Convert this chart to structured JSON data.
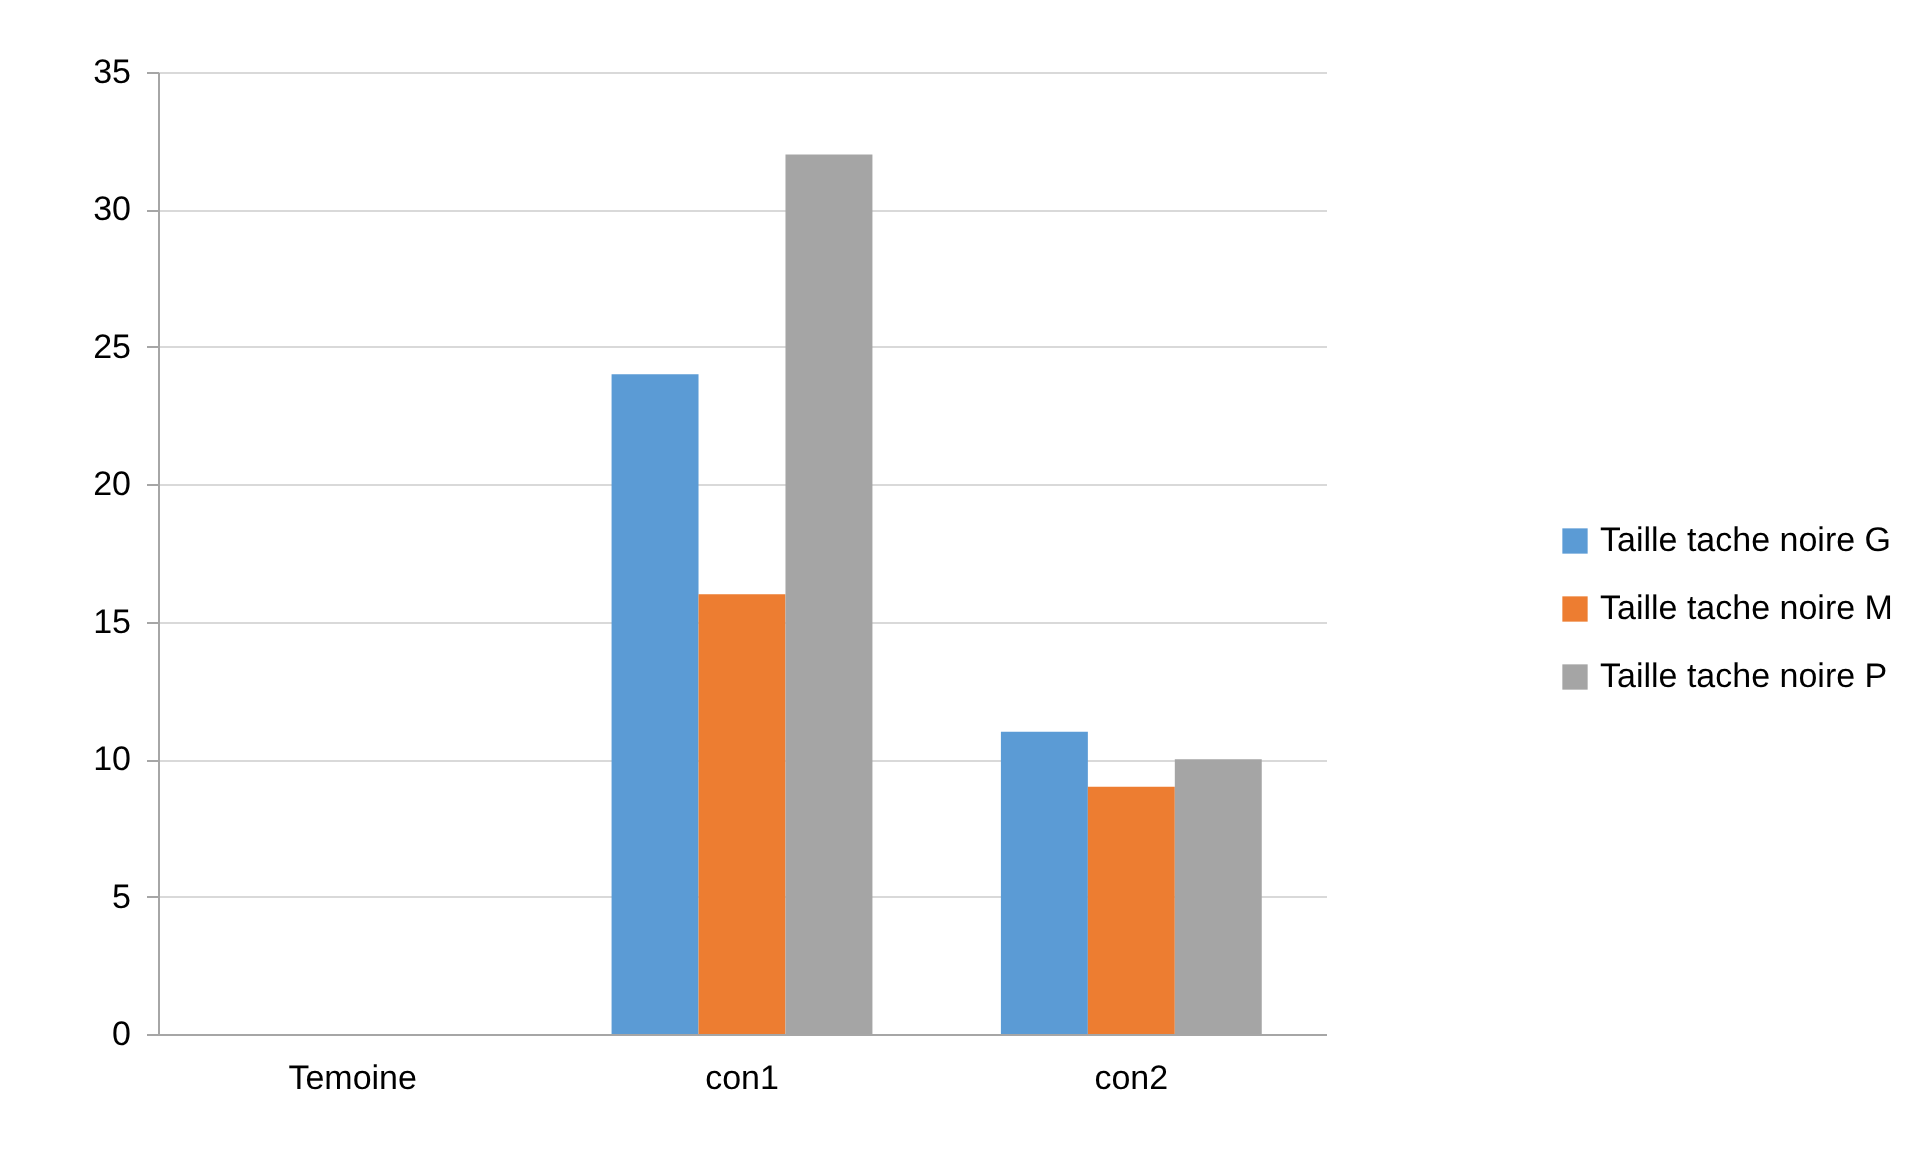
{
  "chart_data": {
    "type": "bar",
    "categories": [
      "Temoine",
      "con1",
      "con2"
    ],
    "series": [
      {
        "name": "Taille tache noire G",
        "color": "#5b9bd5",
        "values": [
          0,
          24,
          11
        ]
      },
      {
        "name": "Taille tache noire M",
        "color": "#ed7d31",
        "values": [
          0,
          16,
          9
        ]
      },
      {
        "name": "Taille tache noire P",
        "color": "#a5a5a5",
        "values": [
          0,
          32,
          10
        ]
      }
    ],
    "ylim": [
      0,
      35
    ],
    "yticks": [
      0,
      5,
      10,
      15,
      20,
      25,
      30,
      35
    ],
    "grid": "y",
    "legend": "right"
  }
}
